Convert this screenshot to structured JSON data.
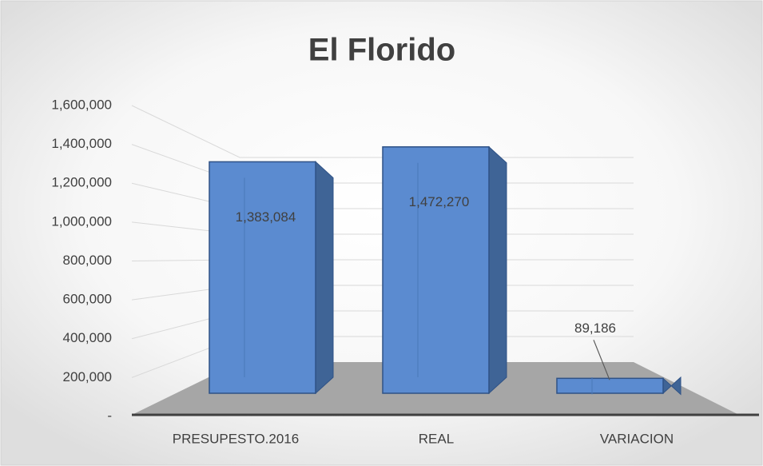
{
  "chart_data": {
    "type": "bar",
    "title": "El Florido",
    "categories": [
      "PRESUPESTO.2016",
      "REAL",
      "VARIACION"
    ],
    "values": [
      1383084,
      1472270,
      89186
    ],
    "value_labels": [
      "1,383,084",
      "1,472,270",
      "89,186"
    ],
    "color": "#5b8bd0",
    "ylim": [
      0,
      1600000
    ],
    "yticks": [
      {
        "value": 0,
        "label": "-"
      },
      {
        "value": 200000,
        "label": "200,000"
      },
      {
        "value": 400000,
        "label": "400,000"
      },
      {
        "value": 600000,
        "label": "600,000"
      },
      {
        "value": 800000,
        "label": "800,000"
      },
      {
        "value": 1000000,
        "label": "1,000,000"
      },
      {
        "value": 1200000,
        "label": "1,200,000"
      },
      {
        "value": 1400000,
        "label": "1,400,000"
      },
      {
        "value": 1600000,
        "label": "1,600,000"
      }
    ],
    "grid": true
  }
}
